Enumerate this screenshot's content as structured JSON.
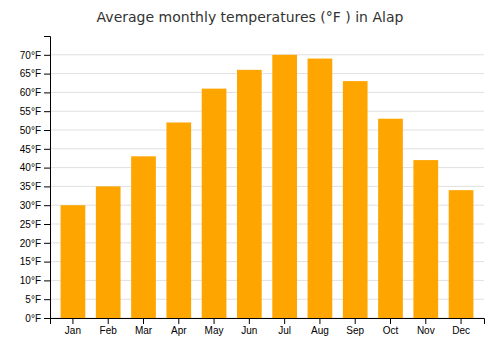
{
  "chart_data": {
    "type": "bar",
    "title": "Average monthly temperatures (°F ) in Alap",
    "categories": [
      "Jan",
      "Feb",
      "Mar",
      "Apr",
      "May",
      "Jun",
      "Jul",
      "Aug",
      "Sep",
      "Oct",
      "Nov",
      "Dec"
    ],
    "values": [
      30,
      35,
      43,
      52,
      61,
      66,
      70,
      69,
      63,
      53,
      42,
      34
    ],
    "color": "#FFA500",
    "ylim": [
      0,
      75
    ],
    "yticks": [
      {
        "value": 0,
        "label": "0°F"
      },
      {
        "value": 5,
        "label": "5°F"
      },
      {
        "value": 10,
        "label": "10°F"
      },
      {
        "value": 15,
        "label": "15°F"
      },
      {
        "value": 20,
        "label": "20°F"
      },
      {
        "value": 25,
        "label": "25°F"
      },
      {
        "value": 30,
        "label": "30°F"
      },
      {
        "value": 35,
        "label": "35°F"
      },
      {
        "value": 40,
        "label": "40°F"
      },
      {
        "value": 45,
        "label": "45°F"
      },
      {
        "value": 50,
        "label": "50°F"
      },
      {
        "value": 55,
        "label": "55°F"
      },
      {
        "value": 60,
        "label": "60°F"
      },
      {
        "value": 65,
        "label": "65°F"
      },
      {
        "value": 70,
        "label": "70°F"
      }
    ],
    "grid": true
  }
}
